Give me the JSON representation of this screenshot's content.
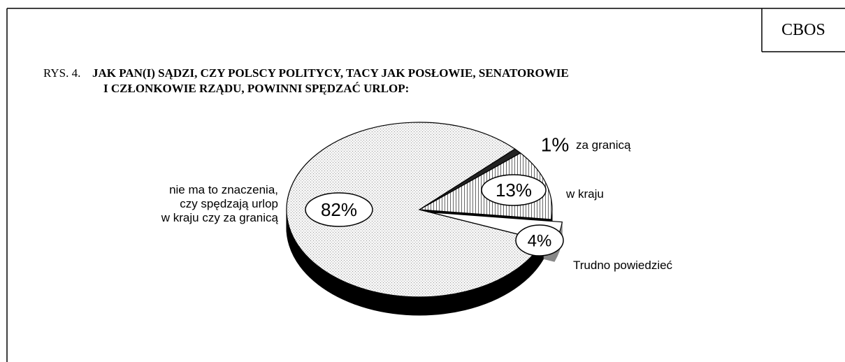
{
  "chart_data": {
    "type": "pie",
    "source": "CBOS",
    "figure_label": "RYS. 4.",
    "title": "JAK PAN(I) SĄDZI, CZY POLSCY POLITYCY, TACY JAK POSŁOWIE, SENATOROWIE\nI  CZŁONKOWIE RZĄDU, POWINNI SPĘDZAĆ URLOP:",
    "categories": [
      "za granicą",
      "w kraju",
      "Trudno powiedzieć",
      "nie ma to znaczenia,\nczy spędzają urlop\nw kraju czy za granicą"
    ],
    "values": [
      1,
      13,
      4,
      82
    ],
    "value_labels": [
      "1%",
      "13%",
      "4%",
      "82%"
    ],
    "colors": [
      "#222222",
      "url(#vhatch)",
      "#ffffff",
      "url(#dots)"
    ],
    "side_colors": [
      "#000000",
      "#000000",
      "#888888",
      "#000000"
    ]
  }
}
